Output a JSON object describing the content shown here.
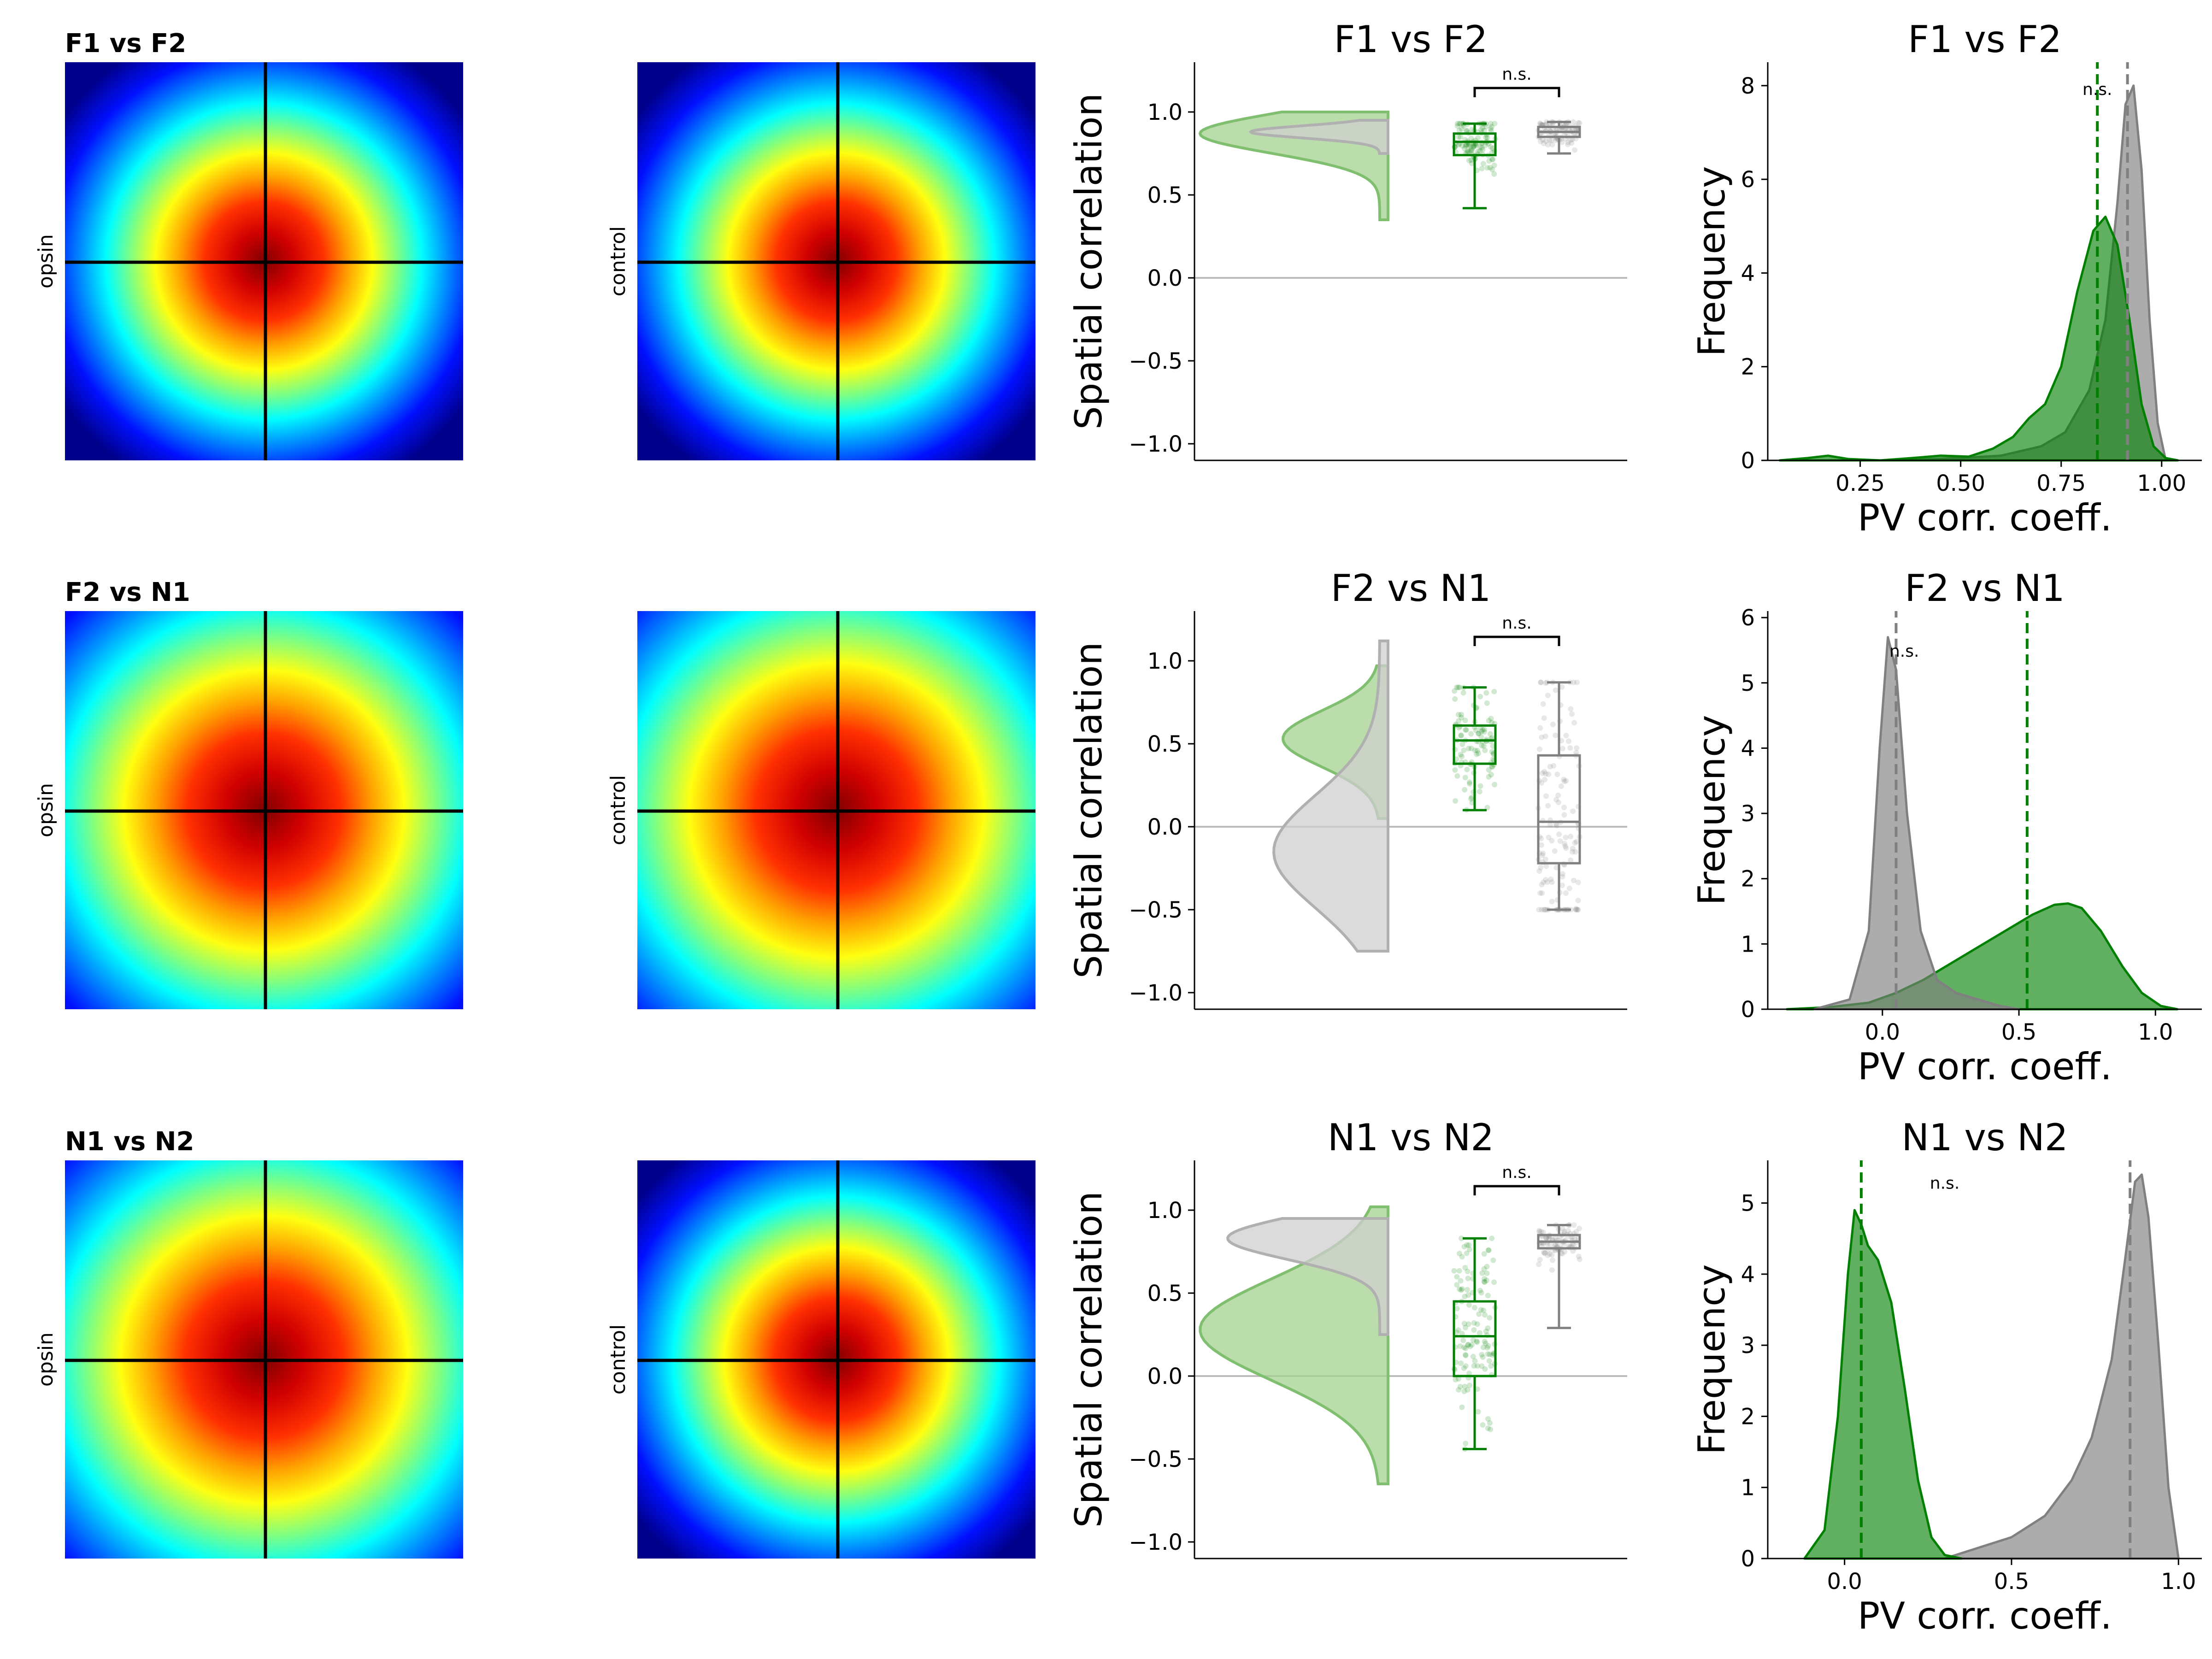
{
  "colors": {
    "opsin": "#008000",
    "control": "#808080",
    "opsin_fill": "#a3d18f",
    "control_fill": "#cfcfcf",
    "heat_bg": "#00008b",
    "crosshair": "#000000",
    "zero_line": "#bbbbbb"
  },
  "rows": [
    {
      "row_title": "F1 vs F2",
      "opsin_label": "opsin",
      "control_label": "control",
      "opsin_map_spread": 0.62,
      "control_map_spread": 0.62,
      "raincloud": {
        "title": "F1 vs F2",
        "ylabel": "Spatial correlation",
        "yticks": [
          "1.0",
          "0.5",
          "0.0",
          "−0.5",
          "−1.0"
        ],
        "sig": "n.s."
      },
      "kde": {
        "title": "F1 vs F2",
        "xlabel": "PV corr. coeff.",
        "ylabel": "Frequency",
        "xticks": [
          "0.25",
          "0.50",
          "0.75",
          "1.00"
        ],
        "yticks": [
          "0",
          "2",
          "4",
          "6",
          "8"
        ],
        "sig": "n.s."
      }
    },
    {
      "row_title": "F2 vs N1",
      "opsin_label": "opsin",
      "control_label": "control",
      "opsin_map_spread": 0.8,
      "control_map_spread": 0.84,
      "raincloud": {
        "title": "F2 vs N1",
        "ylabel": "Spatial correlation",
        "yticks": [
          "1.0",
          "0.5",
          "0.0",
          "−0.5",
          "−1.0"
        ],
        "sig": "n.s."
      },
      "kde": {
        "title": "F2 vs N1",
        "xlabel": "PV corr. coeff.",
        "ylabel": "Frequency",
        "xticks": [
          "0.0",
          "0.5",
          "1.0"
        ],
        "yticks": [
          "0",
          "1",
          "2",
          "3",
          "4",
          "5",
          "6"
        ],
        "sig": "n.s."
      }
    },
    {
      "row_title": "N1 vs N2",
      "opsin_label": "opsin",
      "control_label": "control",
      "opsin_map_spread": 0.82,
      "control_map_spread": 0.64,
      "raincloud": {
        "title": "N1 vs N2",
        "ylabel": "Spatial correlation",
        "yticks": [
          "1.0",
          "0.5",
          "0.0",
          "−0.5",
          "−1.0"
        ],
        "sig": "n.s."
      },
      "kde": {
        "title": "N1 vs N2",
        "xlabel": "PV corr. coeff.",
        "ylabel": "Frequency",
        "xticks": [
          "0.0",
          "0.5",
          "1.0"
        ],
        "yticks": [
          "0",
          "1",
          "2",
          "3",
          "4",
          "5"
        ],
        "sig": "n.s."
      }
    }
  ],
  "chart_data": [
    {
      "type": "box",
      "panel": "F1 vs F2 spatial correlation",
      "title": "F1 vs F2",
      "ylabel": "Spatial correlation",
      "ylim": [
        -1.1,
        1.3
      ],
      "groups": [
        {
          "name": "opsin",
          "q1": 0.74,
          "median": 0.82,
          "q3": 0.87,
          "whisker_low": 0.42,
          "whisker_high": 0.93,
          "n_points": 110,
          "violin_range": [
            0.35,
            1.0
          ],
          "violin_mode": 0.87
        },
        {
          "name": "control",
          "q1": 0.85,
          "median": 0.88,
          "q3": 0.91,
          "whisker_low": 0.75,
          "whisker_high": 0.94,
          "n_points": 90,
          "violin_range": [
            0.75,
            0.95
          ],
          "violin_mode": 0.88
        }
      ],
      "annotation": "n.s."
    },
    {
      "type": "area",
      "panel": "F1 vs F2 PV correlation",
      "title": "F1 vs F2",
      "xlabel": "PV corr. coeff.",
      "ylabel": "Frequency",
      "xlim": [
        0.02,
        1.1
      ],
      "ylim": [
        0,
        8.5
      ],
      "series": [
        {
          "name": "opsin",
          "x": [
            0.05,
            0.12,
            0.17,
            0.22,
            0.3,
            0.38,
            0.45,
            0.52,
            0.58,
            0.63,
            0.67,
            0.71,
            0.75,
            0.79,
            0.83,
            0.86,
            0.89,
            0.92,
            0.95,
            0.98,
            1.01,
            1.04
          ],
          "y": [
            0,
            0.05,
            0.1,
            0.03,
            0,
            0.05,
            0.1,
            0.08,
            0.25,
            0.5,
            0.9,
            1.2,
            2.0,
            3.6,
            4.9,
            5.2,
            4.6,
            3.0,
            1.2,
            0.3,
            0.05,
            0
          ],
          "mean": 0.84
        },
        {
          "name": "control",
          "x": [
            0.32,
            0.4,
            0.5,
            0.6,
            0.7,
            0.76,
            0.82,
            0.86,
            0.89,
            0.91,
            0.93,
            0.95,
            0.97,
            0.99,
            1.01
          ],
          "y": [
            0,
            0.02,
            0.05,
            0.1,
            0.3,
            0.6,
            1.5,
            3.0,
            5.5,
            7.6,
            8.0,
            6.2,
            3.0,
            0.8,
            0
          ],
          "mean": 0.915
        }
      ],
      "annotation": "n.s."
    },
    {
      "type": "box",
      "panel": "F2 vs N1 spatial correlation",
      "title": "F2 vs N1",
      "ylabel": "Spatial correlation",
      "ylim": [
        -1.1,
        1.3
      ],
      "groups": [
        {
          "name": "opsin",
          "q1": 0.38,
          "median": 0.52,
          "q3": 0.61,
          "whisker_low": 0.1,
          "whisker_high": 0.84,
          "n_points": 110,
          "violin_range": [
            0.05,
            0.97
          ],
          "violin_mode": 0.53
        },
        {
          "name": "control",
          "q1": -0.22,
          "median": 0.03,
          "q3": 0.43,
          "whisker_low": -0.5,
          "whisker_high": 0.87,
          "n_points": 140,
          "violin_range": [
            -0.75,
            1.12
          ],
          "violin_mode": -0.15
        }
      ],
      "annotation": "n.s."
    },
    {
      "type": "area",
      "panel": "F2 vs N1 PV correlation",
      "title": "F2 vs N1",
      "xlabel": "PV corr. coeff.",
      "ylabel": "Frequency",
      "xlim": [
        -0.42,
        1.17
      ],
      "ylim": [
        0,
        6.1
      ],
      "series": [
        {
          "name": "opsin",
          "x": [
            -0.35,
            -0.2,
            -0.05,
            0.05,
            0.15,
            0.25,
            0.35,
            0.45,
            0.55,
            0.63,
            0.68,
            0.73,
            0.8,
            0.88,
            0.95,
            1.02,
            1.08
          ],
          "y": [
            0,
            0.03,
            0.1,
            0.25,
            0.45,
            0.7,
            0.95,
            1.2,
            1.45,
            1.6,
            1.62,
            1.55,
            1.2,
            0.65,
            0.25,
            0.05,
            0
          ],
          "mean": 0.53
        },
        {
          "name": "control",
          "x": [
            -0.25,
            -0.12,
            -0.05,
            -0.01,
            0.02,
            0.05,
            0.09,
            0.14,
            0.2,
            0.27,
            0.35,
            0.43,
            0.5
          ],
          "y": [
            0,
            0.15,
            1.2,
            4.0,
            5.7,
            5.2,
            3.0,
            1.2,
            0.45,
            0.25,
            0.15,
            0.05,
            0
          ],
          "mean": 0.05
        }
      ],
      "annotation": "n.s."
    },
    {
      "type": "box",
      "panel": "N1 vs N2 spatial correlation",
      "title": "N1 vs N2",
      "ylabel": "Spatial correlation",
      "ylim": [
        -1.1,
        1.3
      ],
      "groups": [
        {
          "name": "opsin",
          "q1": 0.0,
          "median": 0.24,
          "q3": 0.45,
          "whisker_low": -0.44,
          "whisker_high": 0.83,
          "n_points": 130,
          "violin_range": [
            -0.65,
            1.02
          ],
          "violin_mode": 0.28
        },
        {
          "name": "control",
          "q1": 0.77,
          "median": 0.81,
          "q3": 0.85,
          "whisker_low": 0.29,
          "whisker_high": 0.91,
          "n_points": 90,
          "violin_range": [
            0.25,
            0.95
          ],
          "violin_mode": 0.83
        }
      ],
      "annotation": "n.s."
    },
    {
      "type": "area",
      "panel": "N1 vs N2 PV correlation",
      "title": "N1 vs N2",
      "xlabel": "PV corr. coeff.",
      "ylabel": "Frequency",
      "xlim": [
        -0.23,
        1.07
      ],
      "ylim": [
        0,
        5.6
      ],
      "series": [
        {
          "name": "opsin",
          "x": [
            -0.12,
            -0.06,
            -0.02,
            0.01,
            0.03,
            0.05,
            0.07,
            0.1,
            0.14,
            0.18,
            0.22,
            0.26,
            0.3,
            0.35
          ],
          "y": [
            0,
            0.4,
            2.0,
            4.0,
            4.9,
            4.7,
            4.4,
            4.2,
            3.6,
            2.4,
            1.1,
            0.3,
            0.05,
            0
          ],
          "mean": 0.05
        },
        {
          "name": "control",
          "x": [
            0.3,
            0.4,
            0.5,
            0.6,
            0.68,
            0.74,
            0.8,
            0.84,
            0.87,
            0.89,
            0.91,
            0.94,
            0.97,
            1.0
          ],
          "y": [
            0,
            0.15,
            0.3,
            0.6,
            1.1,
            1.7,
            2.8,
            4.2,
            5.3,
            5.4,
            4.8,
            3.0,
            1.0,
            0
          ],
          "mean": 0.855
        }
      ],
      "annotation": "n.s."
    }
  ]
}
